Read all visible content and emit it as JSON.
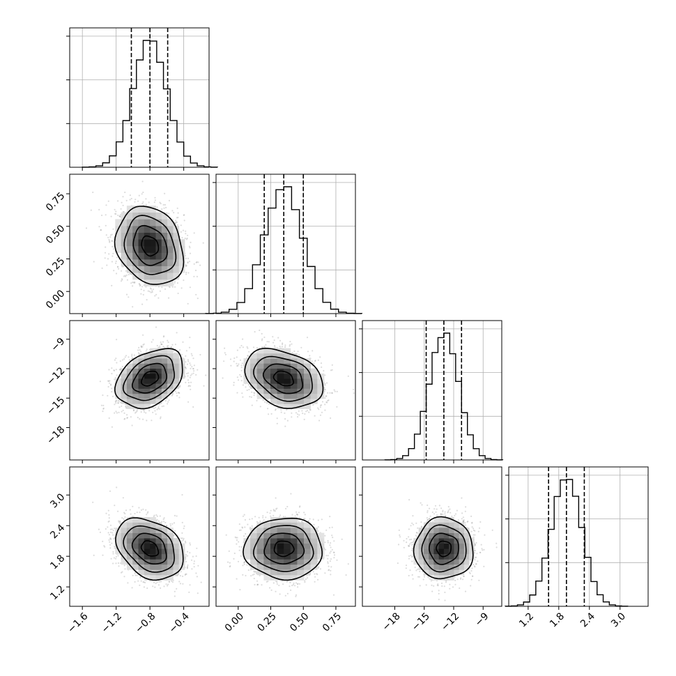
{
  "chart_data": {
    "type": "corner",
    "params": [
      {
        "range": [
          -1.75,
          -0.1
        ],
        "ticks": [
          -1.6,
          -1.2,
          -0.8,
          -0.4
        ],
        "tick_labels": [
          "−1.6",
          "−1.2",
          "−0.8",
          "−0.4"
        ],
        "mean": -0.8,
        "sd": 0.2,
        "quantiles": [
          -1.02,
          -0.8,
          -0.59
        ]
      },
      {
        "range": [
          -0.17,
          0.9
        ],
        "ticks": [
          0.0,
          0.25,
          0.5,
          0.75
        ],
        "tick_labels": [
          "0.00",
          "0.25",
          "0.50",
          "0.75"
        ],
        "mean": 0.35,
        "sd": 0.15,
        "quantiles": [
          0.2,
          0.35,
          0.5
        ]
      },
      {
        "range": [
          -21.3,
          -7.1
        ],
        "ticks": [
          -18,
          -15,
          -12,
          -9
        ],
        "tick_labels": [
          "−18",
          "−15",
          "−12",
          "−9"
        ],
        "mean": -13.0,
        "sd": 1.5,
        "quantiles": [
          -14.8,
          -13.0,
          -11.2
        ]
      },
      {
        "range": [
          0.82,
          3.55
        ],
        "ticks": [
          1.2,
          1.8,
          2.4,
          3.0
        ],
        "tick_labels": [
          "1.2",
          "1.8",
          "2.4",
          "3.0"
        ],
        "mean": 1.95,
        "sd": 0.3,
        "quantiles": [
          1.6,
          1.95,
          2.3
        ]
      }
    ],
    "correlations": [
      [
        1.0,
        -0.2,
        0.35,
        -0.3
      ],
      [
        -0.2,
        1.0,
        -0.3,
        0.0
      ],
      [
        0.35,
        -0.3,
        1.0,
        0.0
      ],
      [
        -0.3,
        0.0,
        0.0,
        1.0
      ]
    ],
    "contour_levels_sigma": [
      0.5,
      1.0,
      1.5,
      2.0
    ],
    "histogram_bins": 20,
    "grid": true,
    "colors": {
      "density": "#000000",
      "scatter": "#9a9a9a",
      "grid": "#b0b0b0"
    }
  }
}
